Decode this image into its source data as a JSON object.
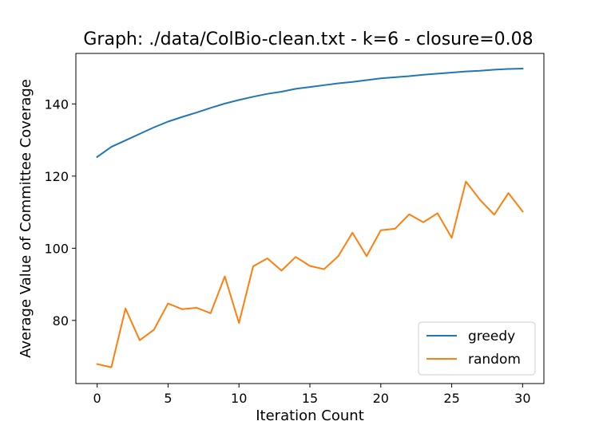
{
  "chart_data": {
    "type": "line",
    "title": "Graph: ./data/ColBio-clean.txt - k=6 - closure=0.08",
    "xlabel": "Iteration Count",
    "ylabel": "Average Value of Committee Coverage",
    "xlim": [
      -1.5,
      31.5
    ],
    "ylim": [
      62.5,
      154
    ],
    "xticks": [
      0,
      5,
      10,
      15,
      20,
      25,
      30
    ],
    "yticks": [
      80,
      100,
      120,
      140
    ],
    "grid": false,
    "legend_position": "lower-right",
    "x": [
      0,
      1,
      2,
      3,
      4,
      5,
      6,
      7,
      8,
      9,
      10,
      11,
      12,
      13,
      14,
      15,
      16,
      17,
      18,
      19,
      20,
      21,
      22,
      23,
      24,
      25,
      26,
      27,
      28,
      29,
      30
    ],
    "series": [
      {
        "name": "greedy",
        "color": "#1f77b4",
        "values": [
          125.3,
          128.1,
          129.9,
          131.7,
          133.5,
          135.1,
          136.4,
          137.6,
          138.9,
          140.1,
          141.1,
          142.0,
          142.8,
          143.4,
          144.2,
          144.7,
          145.2,
          145.7,
          146.1,
          146.6,
          147.1,
          147.4,
          147.7,
          148.1,
          148.4,
          148.7,
          149.0,
          149.2,
          149.5,
          149.7,
          149.8
        ]
      },
      {
        "name": "random",
        "color": "#ff7f0e",
        "values": [
          67.9,
          67.0,
          83.3,
          74.5,
          77.4,
          84.7,
          83.1,
          83.5,
          82.0,
          92.2,
          79.3,
          95.0,
          97.2,
          93.8,
          97.6,
          95.1,
          94.2,
          97.8,
          104.3,
          97.8,
          105.0,
          105.4,
          109.4,
          107.2,
          109.7,
          102.9,
          118.5,
          113.4,
          109.3,
          115.3,
          110.2
        ]
      }
    ]
  }
}
